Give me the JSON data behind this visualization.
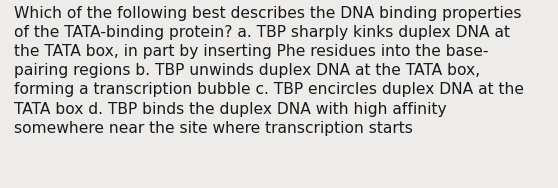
{
  "text": "Which of the following best describes the DNA binding properties\nof the TATA-binding protein? a. TBP sharply kinks duplex DNA at\nthe TATA box, in part by inserting Phe residues into the base-\npairing regions b. TBP unwinds duplex DNA at the TATA box,\nforming a transcription bubble c. TBP encircles duplex DNA at the\nTATA box d. TBP binds the duplex DNA with high affinity\nsomewhere near the site where transcription starts",
  "background_color": "#edecea",
  "text_color": "#1a1a1a",
  "font_size": 11.2,
  "fig_width": 5.58,
  "fig_height": 1.88,
  "dpi": 100
}
